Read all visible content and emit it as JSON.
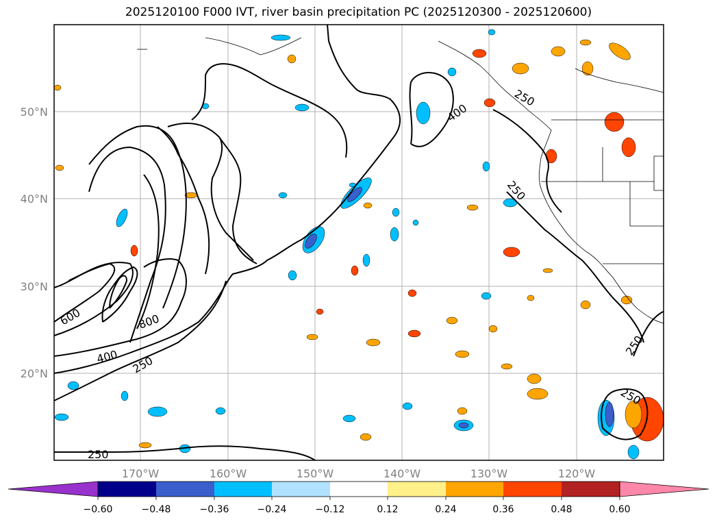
{
  "title": "2025120100 F000 IVT, river basin precipitation PC (2025120300 - 2025120600)",
  "lat_labels": [
    "50°N",
    "40°N",
    "30°N",
    "20°N"
  ],
  "lon_labels": [
    "170°W",
    "160°W",
    "150°W",
    "140°W",
    "130°W",
    "120°W"
  ],
  "contour_labels": [
    "400",
    "250",
    "250",
    "600",
    "800",
    "400",
    "250",
    "250",
    "250",
    "250"
  ],
  "colorbar": {
    "colors": [
      "#9932cc",
      "#00008b",
      "#3a5fcd",
      "#00bfff",
      "#b0e2ff",
      "#ffffff",
      "#fff08a",
      "#ffa500",
      "#ff4500",
      "#b22222",
      "#ff88aa"
    ],
    "under_color": "#9932cc",
    "over_color": "#ff88aa",
    "ticks": [
      "−0.60",
      "−0.48",
      "−0.36",
      "−0.24",
      "−0.12",
      "0.12",
      "0.24",
      "0.36",
      "0.48",
      "0.60"
    ]
  },
  "colors": {
    "contour": "#000000",
    "grid": "#b0b0b0",
    "coast": "#000000"
  }
}
